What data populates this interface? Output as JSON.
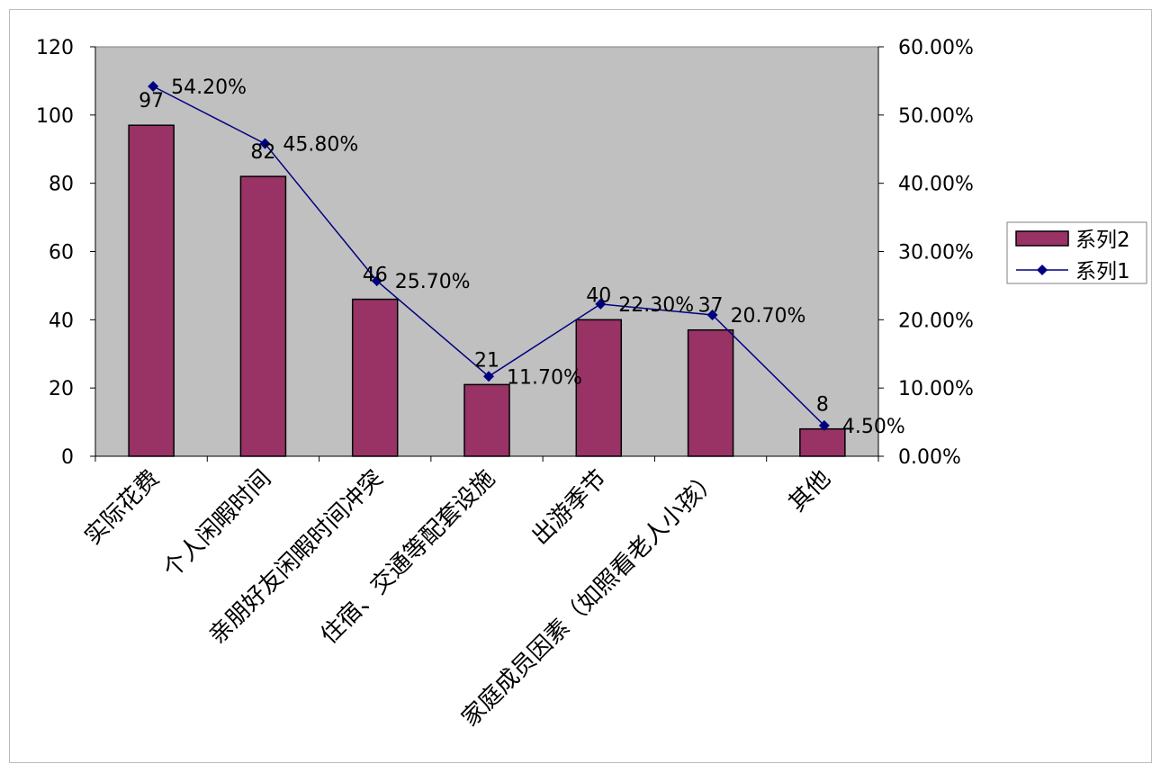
{
  "chart_data": {
    "type": "bar",
    "categories": [
      "实际花费",
      "个人闲暇时间",
      "亲朋好友闲暇时间冲突",
      "住宿、交通等配套设施",
      "出游季节",
      "家庭成员因素（如照看老人小孩）",
      "其他"
    ],
    "series": [
      {
        "name": "系列2",
        "type": "bar",
        "axis": "left",
        "values": [
          97,
          82,
          46,
          21,
          40,
          37,
          8
        ],
        "labels": [
          "97",
          "82",
          "46",
          "21",
          "40",
          "37",
          "8"
        ]
      },
      {
        "name": "系列1",
        "type": "line",
        "axis": "right",
        "values": [
          54.2,
          45.8,
          25.7,
          11.7,
          22.3,
          20.7,
          4.5
        ],
        "labels": [
          "54.20%",
          "45.80%",
          "25.70%",
          "11.70%",
          "22.30%",
          "20.70%",
          "4.50%"
        ]
      }
    ],
    "left_axis": {
      "min": 0,
      "max": 120,
      "ticks": [
        "0",
        "20",
        "40",
        "60",
        "80",
        "100",
        "120"
      ]
    },
    "right_axis": {
      "min": 0,
      "max": 60,
      "ticks": [
        "0.00%",
        "10.00%",
        "20.00%",
        "30.00%",
        "40.00%",
        "50.00%",
        "60.00%"
      ]
    },
    "legend": {
      "position": "right",
      "items": [
        "系列2",
        "系列1"
      ]
    },
    "grid": false
  },
  "colors": {
    "plot_background": "#c0c0c0",
    "bar_fill": "#993366",
    "bar_stroke": "#000000",
    "line": "#000080",
    "marker": "#000080",
    "axis": "#000000"
  }
}
